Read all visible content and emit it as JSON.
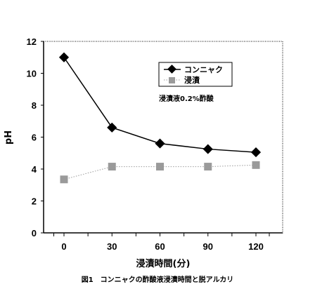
{
  "chart_data": {
    "type": "line",
    "x": [
      0,
      30,
      60,
      90,
      120
    ],
    "xlabel": "浸漬時間(分)",
    "ylabel": "pH",
    "ylim": [
      0,
      12
    ],
    "y_ticks": [
      0,
      2,
      4,
      6,
      8,
      10,
      12
    ],
    "x_ticks": [
      "0",
      "30",
      "60",
      "90",
      "120"
    ],
    "grid": false,
    "legend_position": "top-right",
    "annotation": "浸漬液0.2%酢酸",
    "caption": "図1　コンニャクの酢酸液浸漬時間と脱アルカリ",
    "series": [
      {
        "name": "コンニャク",
        "values": [
          11.0,
          6.6,
          5.6,
          5.25,
          5.05
        ],
        "color": "#000000",
        "marker": "diamond",
        "line": "solid"
      },
      {
        "name": "浸漬",
        "values": [
          3.35,
          4.15,
          4.15,
          4.15,
          4.25
        ],
        "color": "#9a9a9a",
        "marker": "square",
        "line": "dotted"
      }
    ]
  }
}
